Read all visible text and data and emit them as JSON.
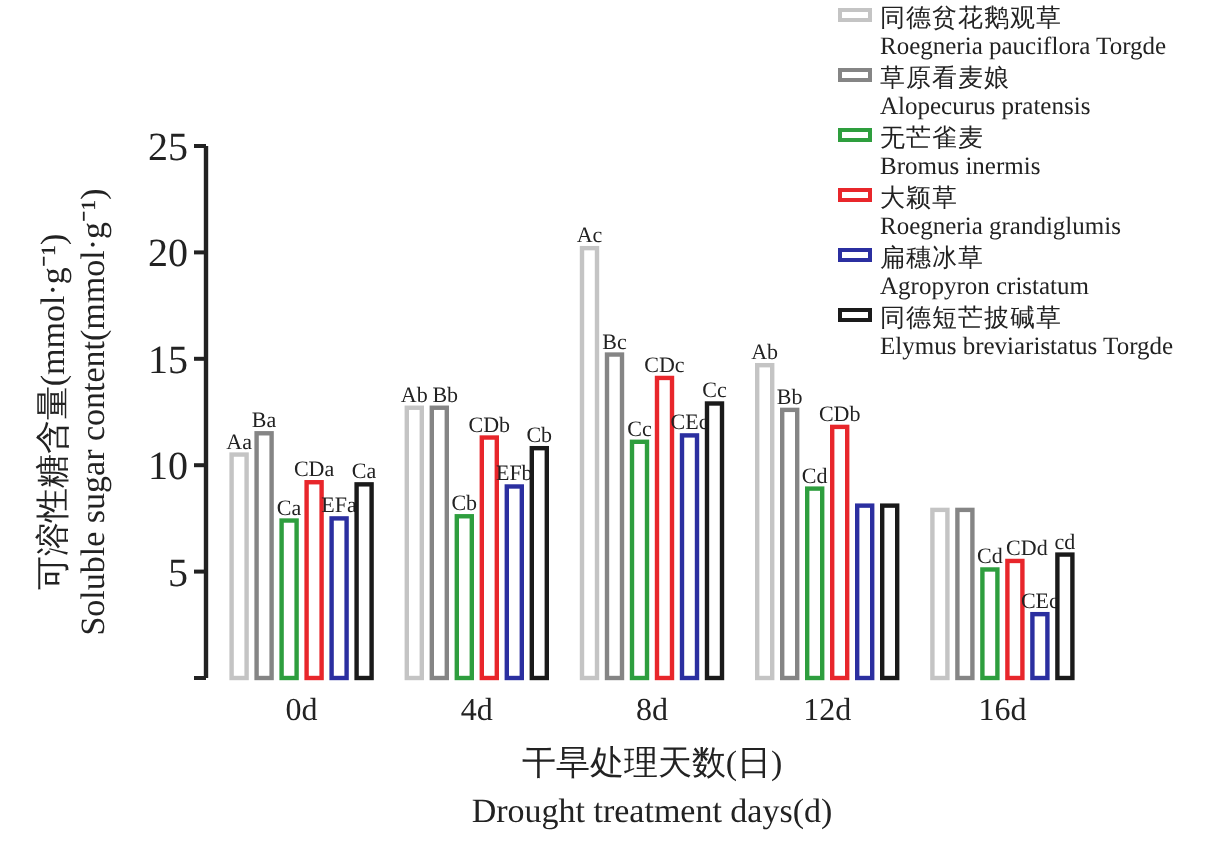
{
  "chart_data": {
    "type": "bar",
    "ylabel": "可溶性糖含量(mmol·g⁻¹)\nSoluble sugar content(mmol·g⁻¹)",
    "xlabel": "干旱处理天数(日)\nDrought treatment days(d)",
    "categories": [
      "0d",
      "4d",
      "8d",
      "12d",
      "16d"
    ],
    "ylim": [
      0,
      25
    ],
    "yticks": [
      {
        "value": 0,
        "label": null
      },
      5,
      10,
      15,
      20,
      25
    ],
    "grid": false,
    "legend": "top right",
    "series": [
      {
        "name": "同德贫花鹅观草\nRoegneria pauciflora Torgde",
        "color": "#c4c4c4",
        "values": [
          10.5,
          12.7,
          20.2,
          14.7,
          7.9
        ],
        "value_labels": [
          "Aa",
          "Ab",
          "Ac",
          "Ab",
          null
        ]
      },
      {
        "name": "草原看麦娘\nAlopecurus pratensis",
        "color": "#858585",
        "values": [
          11.5,
          12.7,
          15.2,
          12.6,
          7.9
        ],
        "value_labels": [
          "Ba",
          "Bb",
          "Bc",
          "Bb",
          null
        ]
      },
      {
        "name": "无芒雀麦\nBromus inermis",
        "color": "#2e9e3e",
        "values": [
          7.4,
          7.6,
          11.1,
          8.9,
          5.1
        ],
        "value_labels": [
          "Ca",
          "Cb",
          "Cc",
          "Cd",
          "Cd"
        ]
      },
      {
        "name": "大颖草\nRoegneria grandiglumis",
        "color": "#e8262b",
        "values": [
          9.2,
          11.3,
          14.1,
          11.8,
          5.5
        ],
        "value_labels": [
          "CDa",
          "CDb",
          "CDc",
          "CDb",
          "CDd"
        ]
      },
      {
        "name": "扁穗冰草\nAgropyron cristatum",
        "color": "#2b2fa0",
        "values": [
          7.5,
          9.0,
          11.4,
          8.1,
          3.0
        ],
        "value_labels": [
          "EFa",
          "EFb",
          "CEc",
          null,
          "CEc"
        ]
      },
      {
        "name": "同德短芒披碱草\nElymus breviaristatus Torgde",
        "color": "#1a1a1a",
        "values": [
          9.1,
          10.8,
          12.9,
          8.1,
          5.8
        ],
        "value_labels": [
          "Ca",
          "Cb",
          "Cc",
          null,
          "cd"
        ]
      }
    ]
  }
}
